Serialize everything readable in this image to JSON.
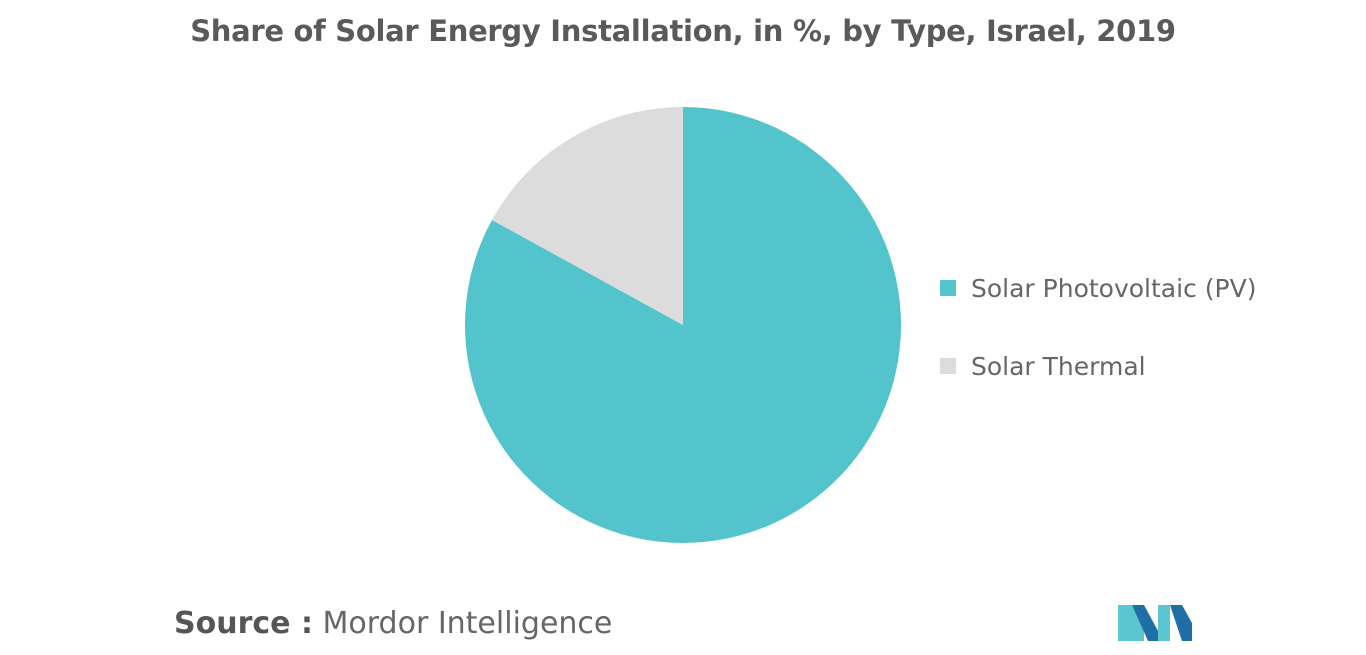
{
  "title": "Share of Solar Energy Installation, in %, by Type, Israel, 2019",
  "chart_data": {
    "type": "pie",
    "title": "Share of Solar Energy Installation, in %, by Type, Israel, 2019",
    "start_angle_deg": 0,
    "direction": "clockwise",
    "slices": [
      {
        "label": "Solar Photovoltaic (PV)",
        "value": 83,
        "color": "#53c4cc"
      },
      {
        "label": "Solar Thermal",
        "value": 17,
        "color": "#dcdcdc"
      }
    ],
    "legend_position": "right"
  },
  "source": {
    "label": "Source :",
    "value": "Mordor Intelligence"
  },
  "colors": {
    "title": "#5a5a5a",
    "pv": "#53c4cc",
    "thermal": "#dcdcdc",
    "logo_dark": "#1f6fa6",
    "logo_light": "#5bc6d0"
  },
  "logo": {
    "name": "mordor-intelligence-logo"
  }
}
